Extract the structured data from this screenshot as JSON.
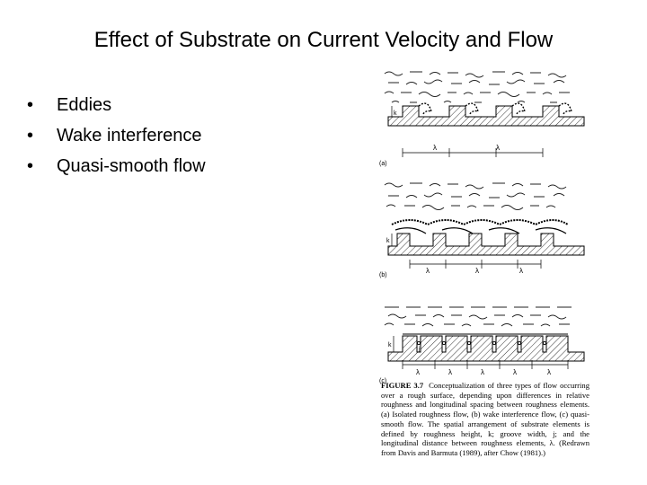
{
  "slide": {
    "title": "Effect of Substrate on Current Velocity and Flow",
    "bullets": [
      "Eddies",
      "Wake interference",
      "Quasi-smooth flow"
    ]
  },
  "figure": {
    "panel_labels": [
      "(a)",
      "(b)",
      "(c)"
    ],
    "height_label": "k",
    "groove_label": "j",
    "spacing_label": "λ",
    "caption_lead": "FIGURE 3.7",
    "caption_text": "Conceptualization of three types of flow occurring over a rough surface, depending upon differences in relative roughness and longitudinal spacing between roughness elements. (a) Isolated roughness flow, (b) wake interference flow, (c) quasi-smooth flow. The spatial arrangement of substrate elements is defined by roughness height, k; groove width, j; and the longitudinal distance between roughness elements, λ. (Redrawn from Davis and Barmuta (1989), after Chow (1981).)"
  }
}
